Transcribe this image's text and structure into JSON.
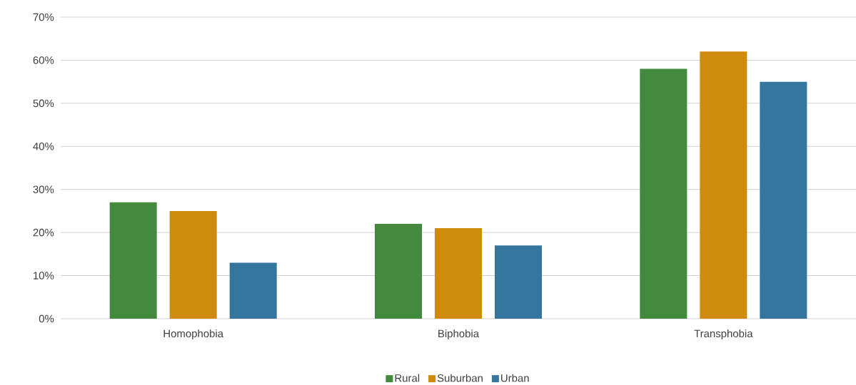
{
  "chart_data": {
    "type": "bar",
    "categories": [
      "Homophobia",
      "Biphobia",
      "Transphobia"
    ],
    "series": [
      {
        "name": "Rural",
        "color": "#448a3e",
        "values": [
          27,
          22,
          58
        ]
      },
      {
        "name": "Suburban",
        "color": "#ce8b0e",
        "values": [
          25,
          21,
          62
        ]
      },
      {
        "name": "Urban",
        "color": "#35769f",
        "values": [
          13,
          17,
          55
        ]
      }
    ],
    "ylim": [
      0,
      70
    ],
    "yticks": [
      {
        "value": 0,
        "label": "0%"
      },
      {
        "value": 10,
        "label": "10%"
      },
      {
        "value": 20,
        "label": "20%"
      },
      {
        "value": 30,
        "label": "30%"
      },
      {
        "value": 40,
        "label": "40%"
      },
      {
        "value": 50,
        "label": "50%"
      },
      {
        "value": 60,
        "label": "60%"
      },
      {
        "value": 70,
        "label": "70%"
      }
    ],
    "grid": "y",
    "legend": "bottom"
  }
}
